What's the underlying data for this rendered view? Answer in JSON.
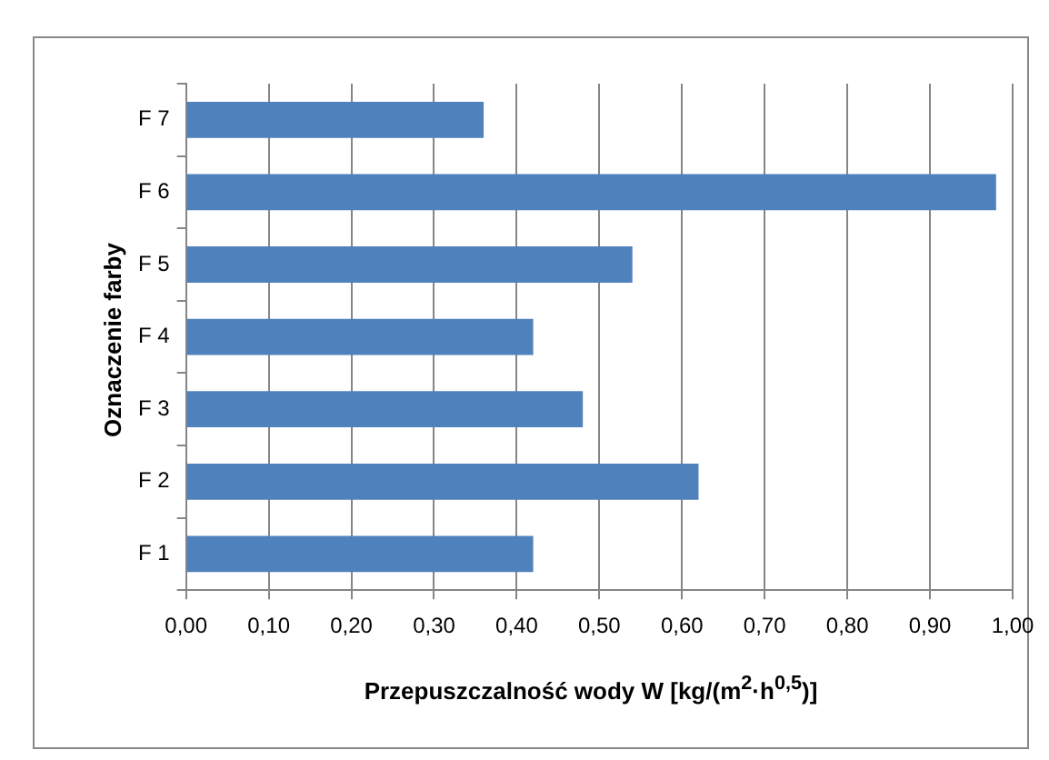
{
  "chart_data": {
    "type": "bar",
    "orientation": "horizontal",
    "ylabel": "Oznaczenie farby",
    "xlabel": "Przepuszczalność wody W [kg/(m$^{2}$·h$^{0,5}$)]",
    "categories": [
      "F 7",
      "F 6",
      "F 5",
      "F 4",
      "F 3",
      "F 2",
      "F 1"
    ],
    "values": [
      0.36,
      0.98,
      0.54,
      0.42,
      0.48,
      0.62,
      0.42
    ],
    "color": "#4f81bd",
    "xlim": [
      0,
      1
    ],
    "xticks": [
      {
        "value": 0,
        "label": "0,00"
      },
      {
        "value": 0.1,
        "label": "0,10"
      },
      {
        "value": 0.2,
        "label": "0,20"
      },
      {
        "value": 0.3,
        "label": "0,30"
      },
      {
        "value": 0.4,
        "label": "0,40"
      },
      {
        "value": 0.5,
        "label": "0,50"
      },
      {
        "value": 0.6,
        "label": "0,60"
      },
      {
        "value": 0.7,
        "label": "0,70"
      },
      {
        "value": 0.8,
        "label": "0,80"
      },
      {
        "value": 0.9,
        "label": "0,90"
      },
      {
        "value": 1,
        "label": "1,00"
      }
    ],
    "grid": "x"
  }
}
